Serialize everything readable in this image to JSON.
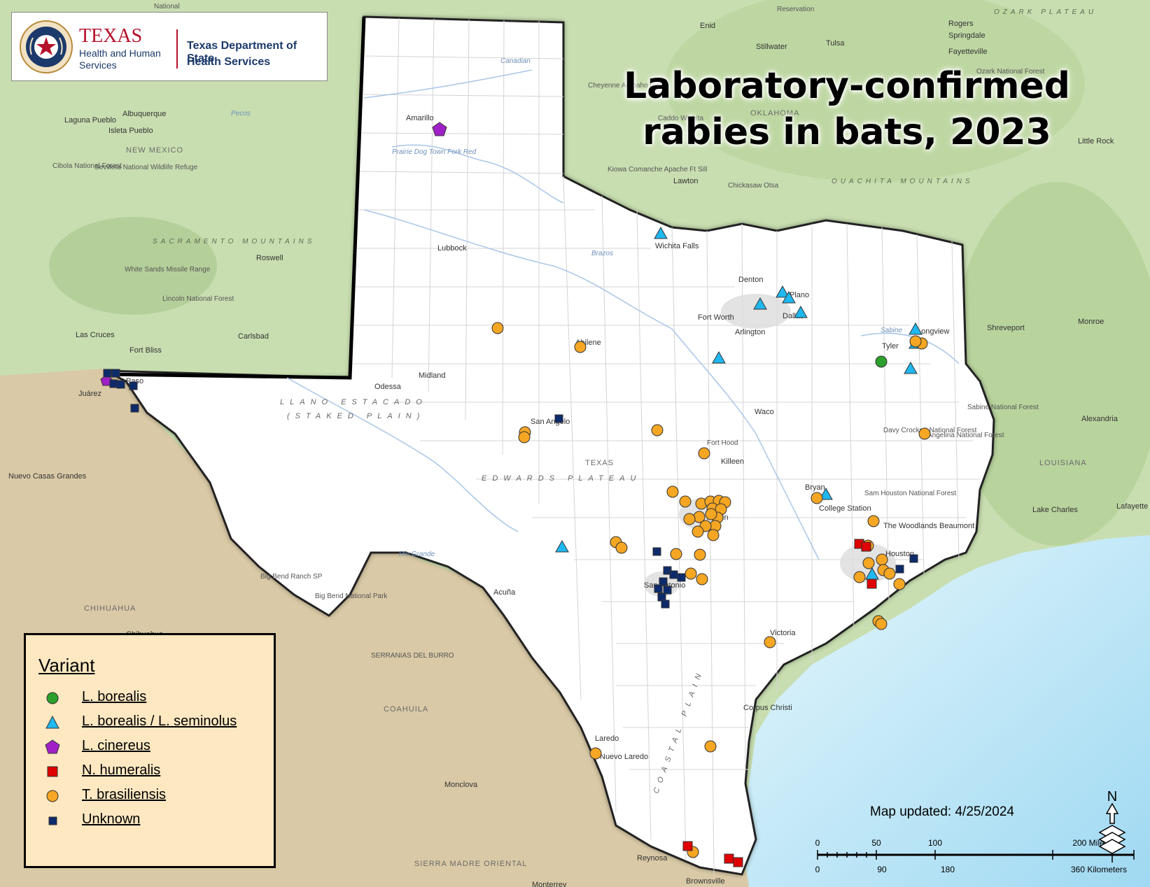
{
  "title": {
    "line1": "Laboratory-confirmed",
    "line2": "rabies in bats, 2023"
  },
  "logos": {
    "hhs_texas": "TEXAS",
    "hhs_line2": "Health and Human",
    "hhs_line3": "Services",
    "dshs_line1": "Texas Department of State",
    "dshs_line2": "Health Services"
  },
  "legend": {
    "title": "Variant",
    "items": [
      {
        "label": "L. borealis",
        "symbol": "circle",
        "color": "#2ca02c"
      },
      {
        "label": "L. borealis / L. seminolus",
        "symbol": "triangle",
        "color": "#1fb8f0"
      },
      {
        "label": "L. cinereus",
        "symbol": "pentagon",
        "color": "#a020c8"
      },
      {
        "label": "N. humeralis",
        "symbol": "square-red",
        "color": "#e00000"
      },
      {
        "label": "T. brasiliensis",
        "symbol": "circle",
        "color": "#f5a623"
      },
      {
        "label": "Unknown",
        "symbol": "square-small",
        "color": "#0d2a6b"
      }
    ]
  },
  "map_updated": "Map updated: 4/25/2024",
  "scale": {
    "miles_ticks": [
      "0",
      "50",
      "100",
      "200 Miles"
    ],
    "km_ticks": [
      "0",
      "90",
      "180",
      "360 Kilometers"
    ]
  },
  "north_label": "N",
  "colors": {
    "texas_fill": "#ffffff",
    "us_terrain": "#c8deb0",
    "mexico": "#d9c9a6",
    "gulf": "#bfe6f6"
  },
  "labels": {
    "cities": [
      "Enid",
      "Stillwater",
      "Tulsa",
      "Rogers",
      "Springdale",
      "Fayetteville",
      "Albuquerque",
      "Laguna Pueblo",
      "Isleta Pueblo",
      "Amarillo",
      "Lubbock",
      "Roswell",
      "Las Cruces",
      "Carlsbad",
      "Fort Bliss",
      "Juárez",
      "Paso",
      "Odessa",
      "Midland",
      "Abilene",
      "San Angelo",
      "Wichita Falls",
      "Denton",
      "Plano",
      "Dallas",
      "Fort Worth",
      "Arlington",
      "Tyler",
      "Longview",
      "Shreveport",
      "Monroe",
      "Waco",
      "Killeen",
      "Bryan",
      "College Station",
      "Austin",
      "San Antonio",
      "Houston",
      "The Woodlands",
      "Beaumont",
      "Victoria",
      "Corpus Christi",
      "Laredo",
      "Nuevo Laredo",
      "Reynosa",
      "Brownsville",
      "Acuña",
      "Monclova",
      "Monterrey",
      "Chihuahua",
      "Nuevo Casas Grandes",
      "Alexandria",
      "Lake Charles",
      "Lafayette",
      "Lawton",
      "Little Rock",
      "Kiowa Comanche Apache Ft Sill",
      "Chickasaw Otsa",
      "Caddo Wichita",
      "Cheyenne Arapaho OTSA",
      "Ozark National Forest"
    ],
    "regions": [
      "NEW MEXICO",
      "OKLAHOMA",
      "TEXAS",
      "LOUISIANA",
      "CHIHUAHUA",
      "COAHUILA"
    ],
    "features": [
      "SACRAMENTO MOUNTAINS",
      "White Sands Missile Range",
      "Lincoln National Forest",
      "Cibola National Forest",
      "Sevilleta National Wildlife Refuge",
      "Big Bend Ranch SP",
      "Big Bend National Park",
      "Fort Hood",
      "Davy Crockett National Forest",
      "Angelina National Forest",
      "Sabine National Forest",
      "Sam Houston National Forest",
      "SERRANIAS DEL BURRO",
      "SIERRA MADRE ORIENTAL",
      "Reservation",
      "National"
    ],
    "terrain": [
      "LLANO ESTACADO",
      "(STAKED PLAIN)",
      "EDWARDS PLATEAU",
      "COASTAL PLAIN",
      "OUACHITA MOUNTAINS",
      "OZARK PLATEAU"
    ],
    "rivers": [
      "Canadian",
      "Prairie Dog Town Fork Red",
      "Pecos",
      "Brazos",
      "Rio Grande",
      "Sabine"
    ]
  }
}
